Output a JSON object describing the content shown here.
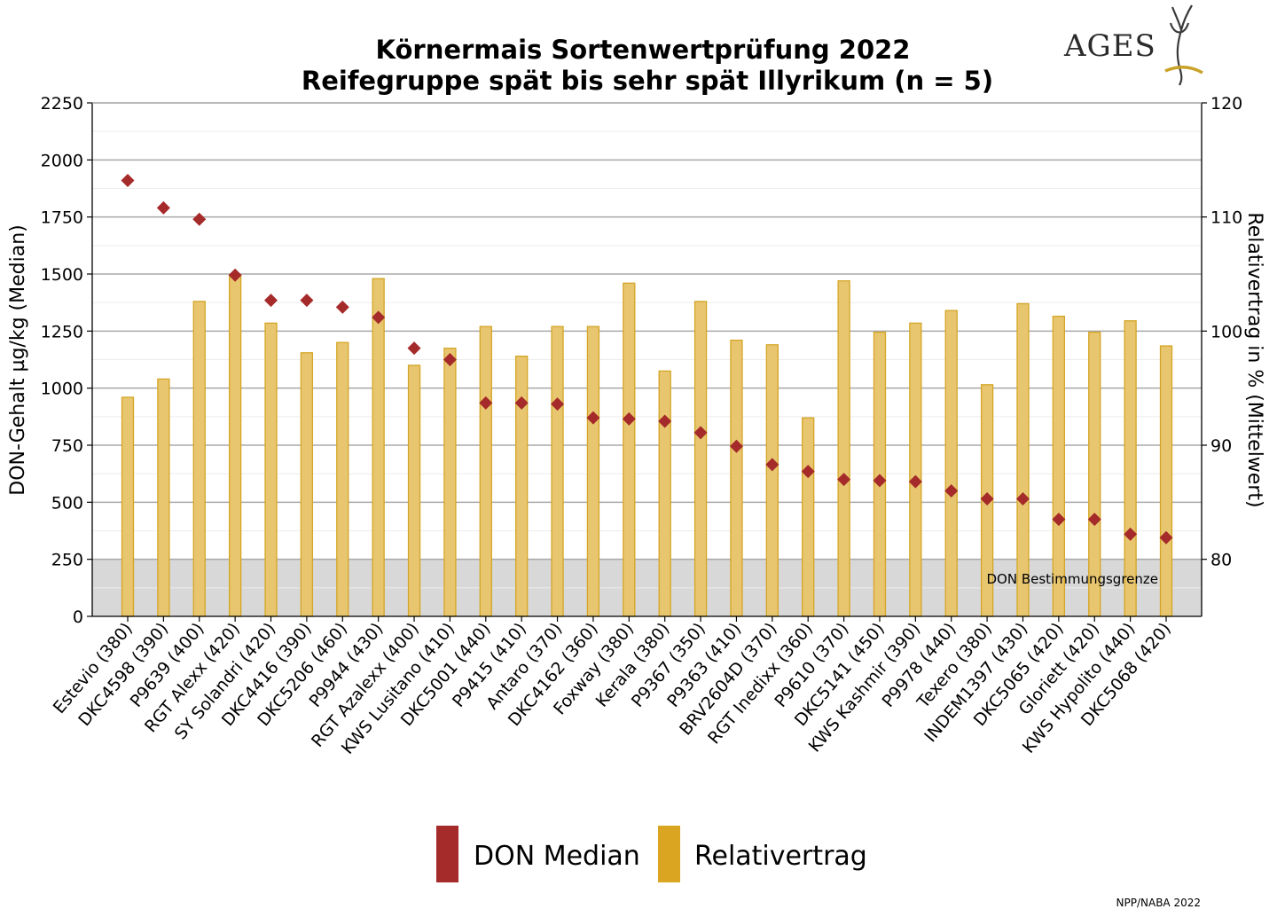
{
  "chart_data": {
    "type": "bar",
    "title_lines": [
      "Körnermais Sortenwertprüfung 2022",
      "Reifegruppe spät bis sehr spät Illyrikum (n = 5)"
    ],
    "ylabel_left": "DON-Gehalt µg/kg (Median)",
    "ylabel_right": "Relativertrag in % (Mittelwert)",
    "left_axis": {
      "min": 0,
      "max": 2250,
      "ticks": [
        0,
        250,
        500,
        750,
        1000,
        1250,
        1500,
        1750,
        2000,
        2250
      ]
    },
    "right_axis": {
      "min": 75,
      "max": 120,
      "ticks": [
        80,
        90,
        100,
        110,
        120
      ]
    },
    "categories": [
      "Estevio (380)",
      "DKC4598 (390)",
      "P9639 (400)",
      "RGT Alexx (420)",
      "SY Solandri (420)",
      "DKC4416 (390)",
      "DKC5206 (460)",
      "P9944 (430)",
      "RGT Azalexx (400)",
      "KWS Lusitano (410)",
      "DKC5001 (440)",
      "P9415 (410)",
      "Antaro (370)",
      "DKC4162 (360)",
      "Foxway (380)",
      "Kerala (380)",
      "P9367 (350)",
      "P9363 (410)",
      "BRV2604D (370)",
      "RGT Inedixx (360)",
      "P9610 (370)",
      "DKC5141 (450)",
      "KWS Kashmir (390)",
      "P9978 (440)",
      "Texero (380)",
      "INDEM1397 (430)",
      "DKC5065 (420)",
      "Gloriett (420)",
      "KWS Hypolito (440)",
      "DKC5068 (420)"
    ],
    "series": [
      {
        "name": "DON Median",
        "kind": "diamond",
        "axis": "left",
        "color": "#A52A2A",
        "values": [
          1910,
          1790,
          1740,
          1495,
          1385,
          1385,
          1355,
          1310,
          1175,
          1125,
          935,
          935,
          930,
          870,
          865,
          855,
          805,
          745,
          665,
          635,
          600,
          595,
          590,
          550,
          515,
          515,
          425,
          425,
          360,
          345
        ]
      },
      {
        "name": "Relativertrag",
        "kind": "bar",
        "axis": "right",
        "color": "#E8C66F",
        "edge_color": "#D4A526",
        "values": [
          94.2,
          95.8,
          102.6,
          104.9,
          100.7,
          98.1,
          99.0,
          104.6,
          97.0,
          98.5,
          100.4,
          97.8,
          100.4,
          100.4,
          104.2,
          96.5,
          102.6,
          99.2,
          98.8,
          92.4,
          104.4,
          99.9,
          100.7,
          101.8,
          95.3,
          102.4,
          101.3,
          99.9,
          100.9,
          98.7
        ]
      }
    ],
    "band": {
      "from": 0,
      "to": 250,
      "label": "DON Bestimmungsgrenze",
      "color": "#D8D8D8"
    },
    "grid": true,
    "legend_position": "bottom-center"
  },
  "legend": [
    {
      "label": "DON Median",
      "color": "#A52A2A"
    },
    {
      "label": "Relativertrag",
      "color": "#DAA520"
    }
  ],
  "logo": {
    "text": "AGES"
  },
  "credit": "NPP/NABA 2022"
}
